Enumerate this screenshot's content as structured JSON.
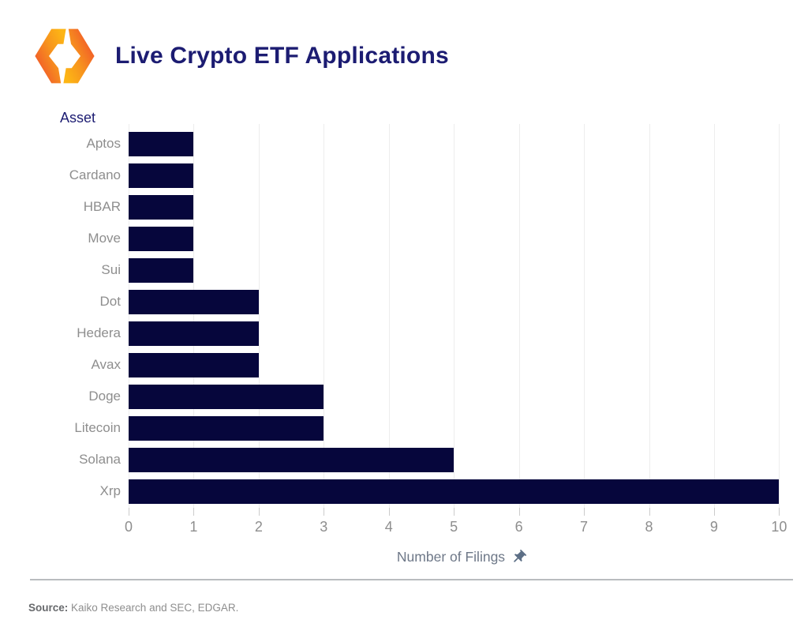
{
  "header": {
    "title": "Live Crypto ETF Applications",
    "logo": "kaiko-logo"
  },
  "chart_data": {
    "type": "bar",
    "orientation": "horizontal",
    "title": "Live Crypto ETF Applications",
    "ylabel": "Asset",
    "xlabel": "Number of Filings",
    "categories": [
      "Aptos",
      "Cardano",
      "HBAR",
      "Move",
      "Sui",
      "Dot",
      "Hedera",
      "Avax",
      "Doge",
      "Litecoin",
      "Solana",
      "Xrp"
    ],
    "values": [
      1,
      1,
      1,
      1,
      1,
      2,
      2,
      2,
      3,
      3,
      5,
      10
    ],
    "x_ticks": [
      0,
      1,
      2,
      3,
      4,
      5,
      6,
      7,
      8,
      9,
      10
    ],
    "xlim": [
      0,
      10.25
    ],
    "grid": true,
    "legend": "none",
    "bar_color": "#06063c"
  },
  "icons": {
    "x_axis_icon": "pushpin-icon",
    "logo_icon": "kaiko-logo-icon"
  },
  "footer": {
    "source_label": "Source:",
    "source_text": " Kaiko Research and SEC, EDGAR."
  },
  "colors": {
    "bar": "#06063c",
    "title": "#1c1c72",
    "axis_label": "#1c1c72",
    "tick_text": "#8e8e8e",
    "x_title_text": "#6e7888",
    "pin": "#5d6f86",
    "gridline": "#ededed",
    "logo_orange_deep": "#f1592a",
    "logo_orange_light": "#fdb515"
  }
}
